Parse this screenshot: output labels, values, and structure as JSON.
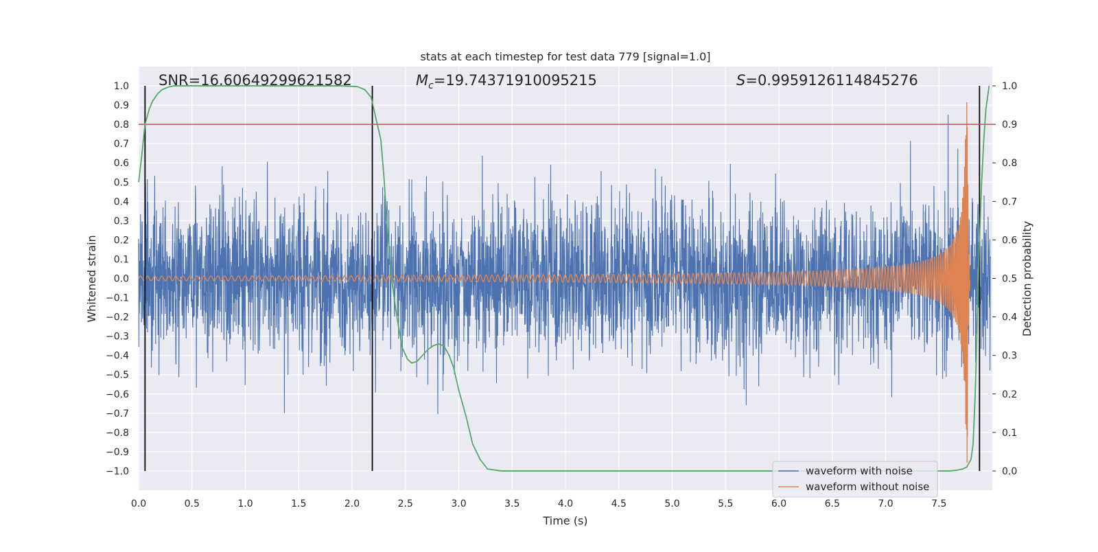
{
  "chart_data": {
    "type": "line",
    "title": "stats at each timestep for test data 779 [signal=1.0]",
    "xlabel": "Time (s)",
    "ylabel": "Whitened strain",
    "ylabel_right": "Detection probability",
    "xlim": [
      0.0,
      8.0
    ],
    "ylim": [
      -1.1,
      1.1
    ],
    "ylim_right": [
      -0.05,
      1.05
    ],
    "xticks": [
      0.0,
      0.5,
      1.0,
      1.5,
      2.0,
      2.5,
      3.0,
      3.5,
      4.0,
      4.5,
      5.0,
      5.5,
      6.0,
      6.5,
      7.0,
      7.5
    ],
    "xtick_labels": [
      "0.0",
      "0.5",
      "1.0",
      "1.5",
      "2.0",
      "2.5",
      "3.0",
      "3.5",
      "4.0",
      "4.5",
      "5.0",
      "5.5",
      "6.0",
      "6.5",
      "7.0",
      "7.5"
    ],
    "yticks": [
      -1.0,
      -0.9,
      -0.8,
      -0.7,
      -0.6,
      -0.5,
      -0.4,
      -0.3,
      -0.2,
      -0.1,
      0.0,
      0.1,
      0.2,
      0.3,
      0.4,
      0.5,
      0.6,
      0.7,
      0.8,
      0.9,
      1.0
    ],
    "ytick_labels": [
      "−1.0",
      "−0.9",
      "−0.8",
      "−0.7",
      "−0.6",
      "−0.5",
      "−0.4",
      "−0.3",
      "−0.2",
      "−0.1",
      "0.0",
      "0.1",
      "0.2",
      "0.3",
      "0.4",
      "0.5",
      "0.6",
      "0.7",
      "0.8",
      "0.9",
      "1.0"
    ],
    "yticks_right": [
      0.0,
      0.1,
      0.2,
      0.3,
      0.4,
      0.5,
      0.6,
      0.7,
      0.8,
      0.9,
      1.0
    ],
    "ytick_labels_right": [
      "0.0",
      "0.1",
      "0.2",
      "0.3",
      "0.4",
      "0.5",
      "0.6",
      "0.7",
      "0.8",
      "0.9",
      "1.0"
    ],
    "grid": true,
    "legend_placement": "lower-right",
    "annotations": {
      "snr": "SNR=16.60649299621582",
      "mc_symbol": "M",
      "mc_sub": "c",
      "mc_value": "=19.74371910095215",
      "s_symbol": "S",
      "s_value": "=0.9959126114845276"
    },
    "threshold": {
      "value": 0.9,
      "axis": "right",
      "color": "#c44e52"
    },
    "vlines": [
      0.06,
      2.19,
      7.88
    ],
    "series": [
      {
        "name": "waveform with noise",
        "color": "#4c72b0",
        "noise_sigma": 0.2,
        "envelope_range": [
          -0.88,
          0.85
        ]
      },
      {
        "name": "waveform without noise",
        "color": "#dd8452",
        "chirp": {
          "t_merge": 7.77,
          "t_start": 0.0,
          "t_end": 7.79,
          "amp_start": 0.012,
          "peak": 1.0,
          "trough": -0.95,
          "cycles_to_merge": 185
        }
      },
      {
        "name": "",
        "axis": "right",
        "color": "#55a868",
        "x": [
          0.0,
          0.03,
          0.06,
          0.1,
          0.13,
          0.18,
          0.22,
          0.28,
          0.33,
          0.4,
          0.5,
          0.8,
          1.2,
          1.6,
          1.9,
          2.05,
          2.12,
          2.18,
          2.22,
          2.27,
          2.3,
          2.33,
          2.37,
          2.42,
          2.47,
          2.52,
          2.56,
          2.61,
          2.66,
          2.71,
          2.76,
          2.81,
          2.86,
          2.91,
          2.95,
          3.0,
          3.07,
          3.13,
          3.2,
          3.27,
          3.4,
          4.0,
          5.0,
          6.0,
          7.0,
          7.5,
          7.6,
          7.67,
          7.72,
          7.76,
          7.8,
          7.82,
          7.84,
          7.86,
          7.88,
          7.9,
          7.92,
          7.94,
          7.97
        ],
        "values": [
          0.75,
          0.82,
          0.9,
          0.94,
          0.96,
          0.98,
          0.99,
          0.997,
          1.0,
          1.0,
          1.0,
          1.0,
          1.0,
          1.0,
          1.0,
          0.998,
          0.99,
          0.97,
          0.92,
          0.86,
          0.76,
          0.63,
          0.5,
          0.4,
          0.32,
          0.29,
          0.28,
          0.285,
          0.3,
          0.315,
          0.325,
          0.33,
          0.325,
          0.3,
          0.27,
          0.21,
          0.14,
          0.07,
          0.03,
          0.005,
          0.0,
          0.0,
          0.0,
          0.0,
          0.0,
          0.0,
          0.0,
          0.002,
          0.005,
          0.01,
          0.03,
          0.07,
          0.2,
          0.4,
          0.6,
          0.75,
          0.86,
          0.94,
          1.0
        ]
      }
    ]
  },
  "colors": {
    "plot_bg": "#eaeaf2",
    "grid": "#ffffff",
    "vline": "#000000"
  }
}
